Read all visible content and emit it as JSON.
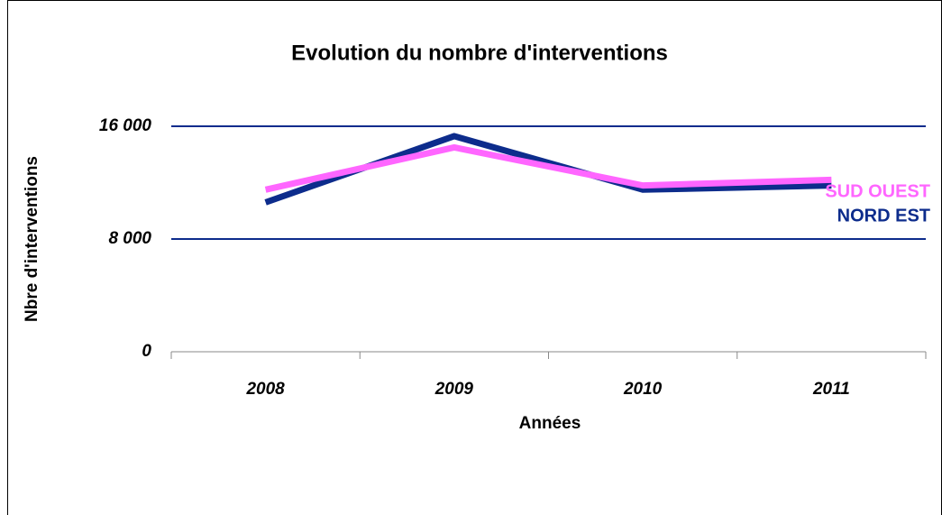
{
  "chart_data": {
    "type": "line",
    "title": "Evolution du nombre d'interventions",
    "x_label": "Années",
    "y_label": "Nbre d'interventions",
    "categories": [
      "2008",
      "2009",
      "2010",
      "2011"
    ],
    "series": [
      {
        "name": "NORD EST",
        "color": "#0d2c8c",
        "values": [
          10600,
          15300,
          11500,
          11800
        ]
      },
      {
        "name": "SUD OUEST",
        "color": "#ff66ff",
        "values": [
          11500,
          14500,
          11800,
          12200
        ]
      }
    ],
    "ylim": [
      0,
      16000
    ],
    "yticks": [
      {
        "value": 0,
        "label": "0"
      },
      {
        "value": 8000,
        "label": "8 000"
      },
      {
        "value": 16000,
        "label": "16 000"
      }
    ],
    "grid": true
  }
}
